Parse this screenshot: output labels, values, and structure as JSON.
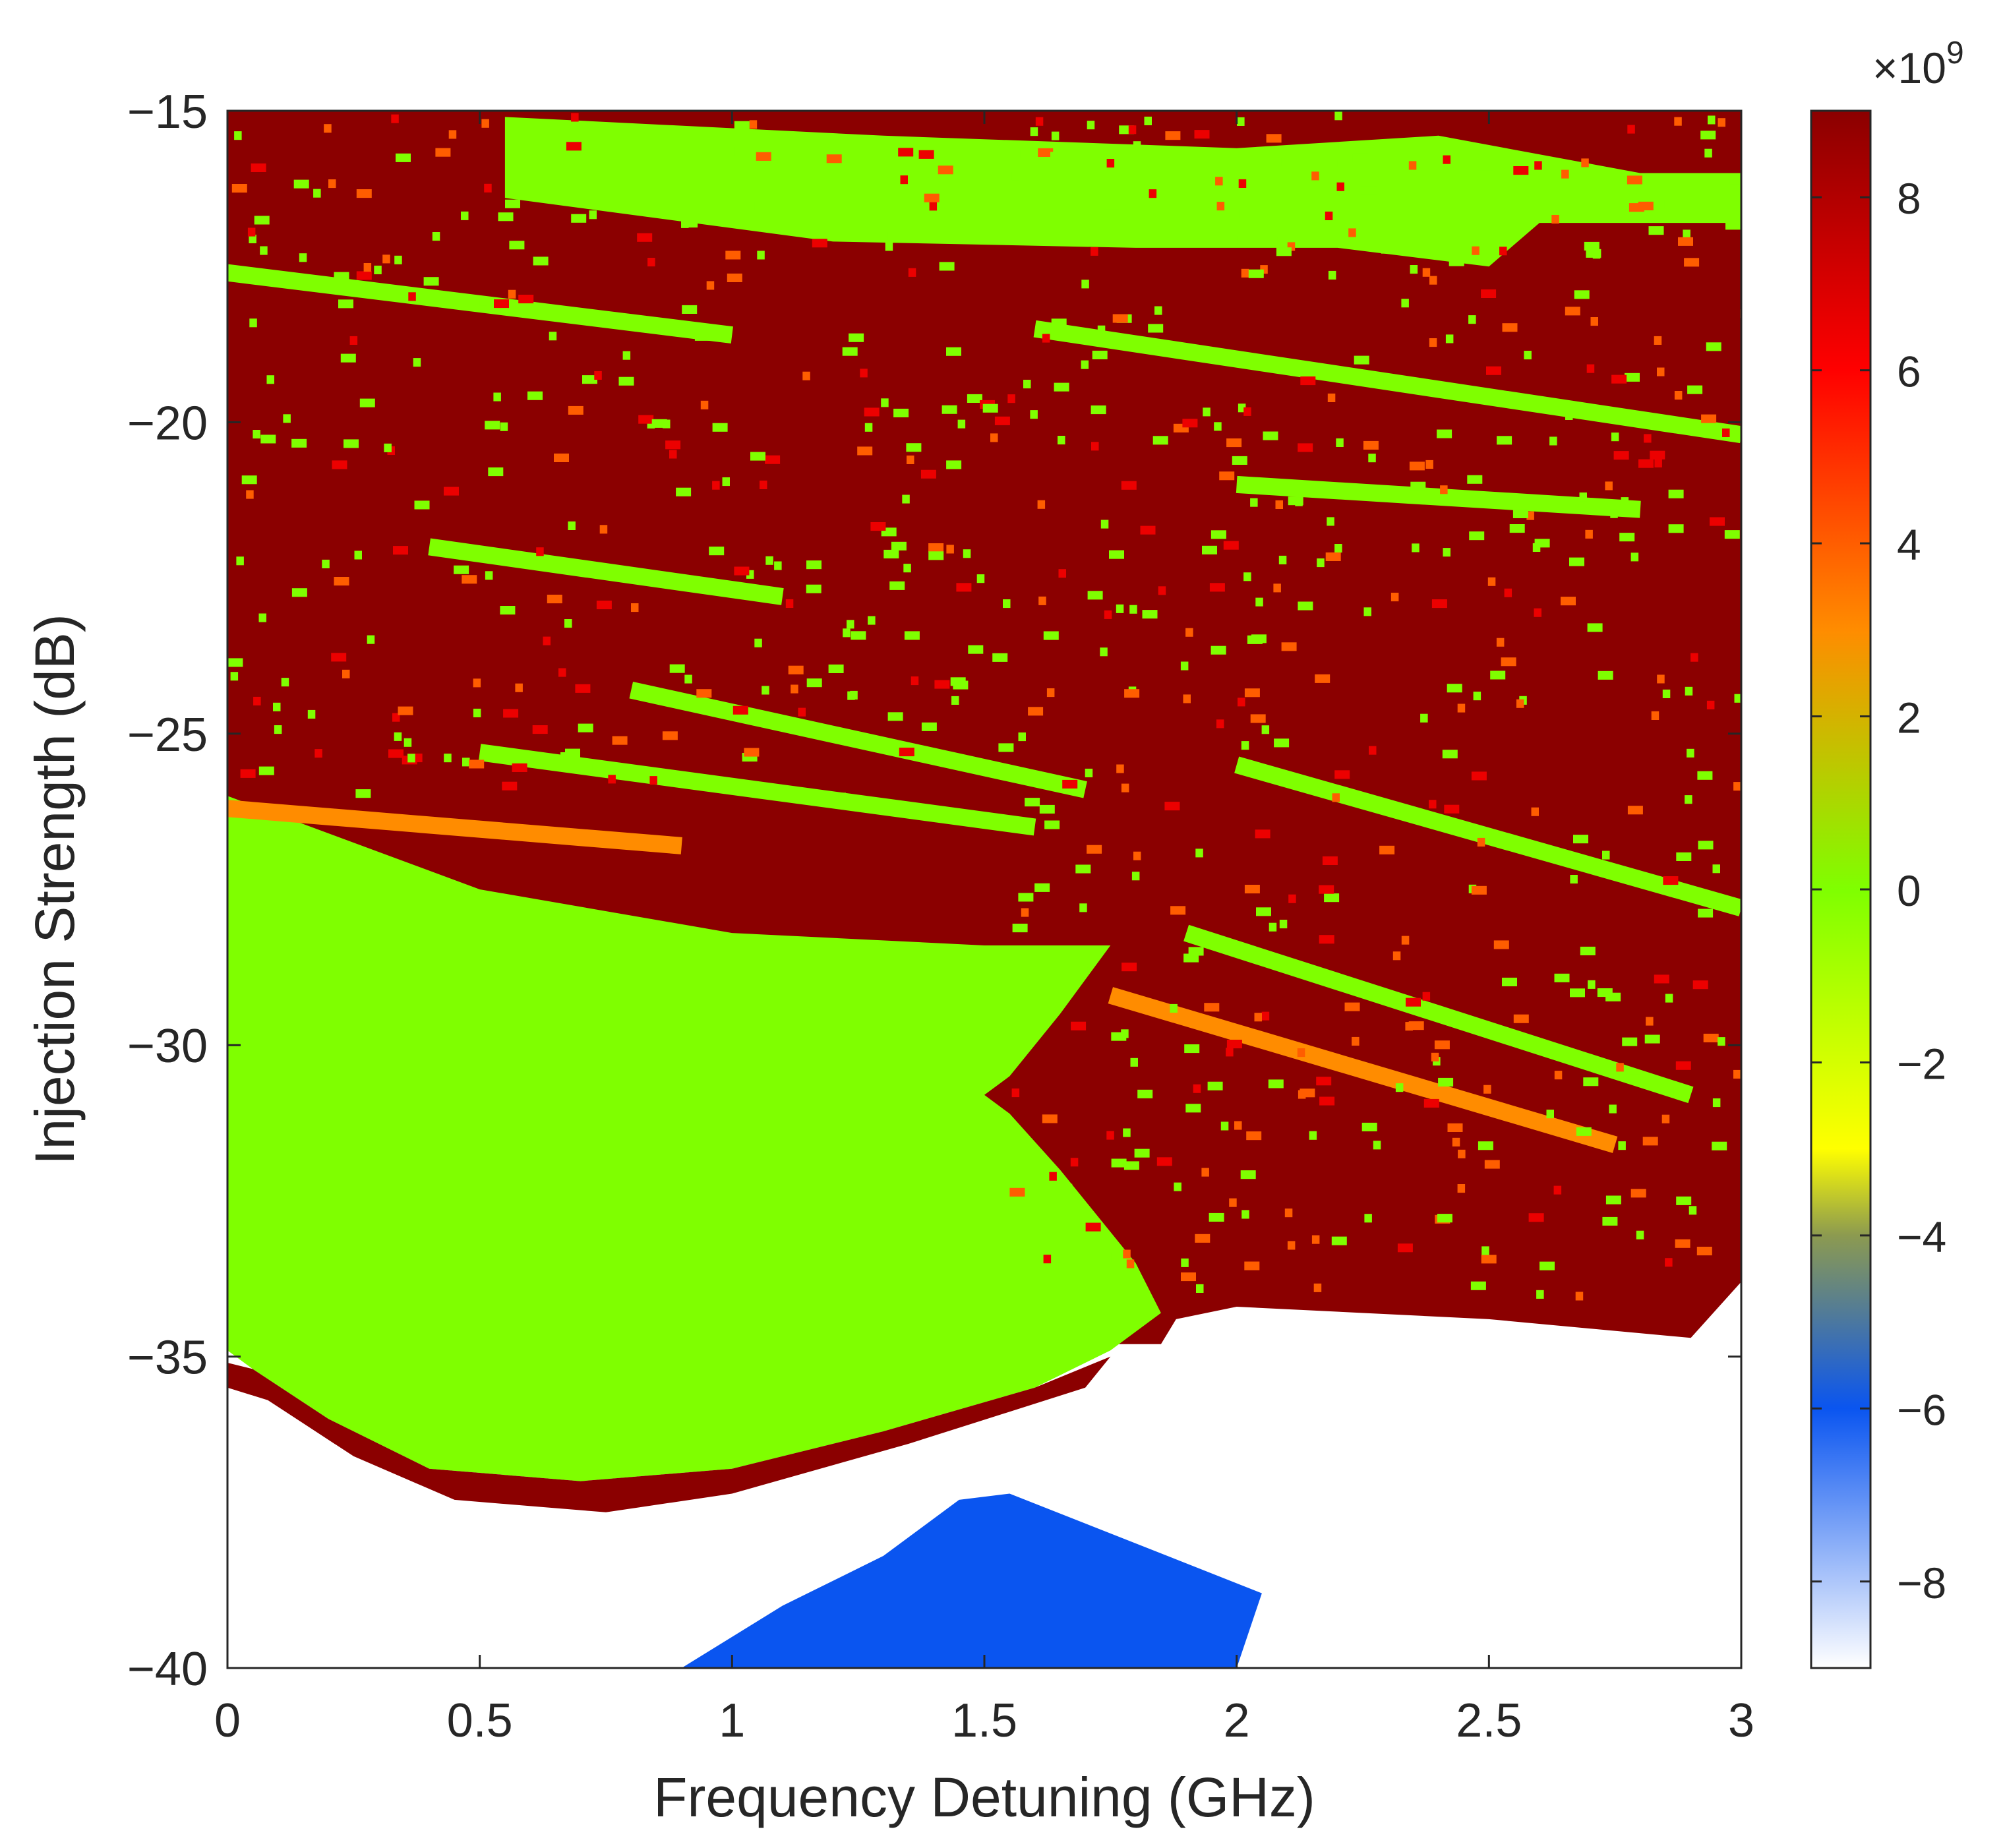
{
  "chart_data": {
    "type": "heatmap",
    "title": "",
    "xlabel": "Frequency Detuning (GHz)",
    "ylabel": "Injection Strength (dB)",
    "xlim": [
      0,
      3
    ],
    "ylim": [
      -40,
      -15
    ],
    "x_ticks": [
      0,
      0.5,
      1,
      1.5,
      2,
      2.5,
      3
    ],
    "x_tick_labels": [
      "0",
      "0.5",
      "1",
      "1.5",
      "2",
      "2.5",
      "3"
    ],
    "y_ticks": [
      -15,
      -20,
      -25,
      -30,
      -35,
      -40
    ],
    "y_tick_labels": [
      "−15",
      "−20",
      "−25",
      "−30",
      "−35",
      "−40"
    ],
    "grid": false,
    "colorbar": {
      "exponent_label": "×10",
      "exponent": "9",
      "limits": [
        -9,
        9
      ],
      "ticks": [
        8,
        6,
        4,
        2,
        0,
        -2,
        -4,
        -6,
        -8
      ],
      "tick_labels": [
        "8",
        "6",
        "4",
        "2",
        "0",
        "−2",
        "−4",
        "−6",
        "−8"
      ],
      "colormap": [
        {
          "v": -9,
          "color": "#ffffff"
        },
        {
          "v": -6,
          "color": "#0a55f0"
        },
        {
          "v": -4,
          "color": "#8c9a50"
        },
        {
          "v": -3,
          "color": "#ffff00"
        },
        {
          "v": 0,
          "color": "#7fff00"
        },
        {
          "v": 3,
          "color": "#ff8c00"
        },
        {
          "v": 6,
          "color": "#ff0000"
        },
        {
          "v": 9,
          "color": "#8b0000"
        }
      ]
    },
    "regions": [
      {
        "name": "high-value background",
        "value": 9,
        "outline": [
          [
            0,
            -15
          ],
          [
            3,
            -15
          ],
          [
            3,
            -33.8
          ],
          [
            2.9,
            -34.7
          ],
          [
            2.5,
            -34.4
          ],
          [
            2,
            -34.2
          ],
          [
            1.88,
            -34.4
          ],
          [
            1.85,
            -34.8
          ],
          [
            0,
            -34.8
          ]
        ]
      },
      {
        "name": "green wedge",
        "value": 0,
        "outline": [
          [
            0,
            -26
          ],
          [
            0.5,
            -27.5
          ],
          [
            1.0,
            -28.2
          ],
          [
            1.5,
            -28.4
          ],
          [
            1.75,
            -28.4
          ],
          [
            1.65,
            -29.5
          ],
          [
            1.55,
            -30.5
          ],
          [
            1.5,
            -30.8
          ],
          [
            1.55,
            -31.1
          ],
          [
            1.65,
            -32
          ],
          [
            1.8,
            -33.5
          ],
          [
            1.85,
            -34.3
          ],
          [
            1.75,
            -34.9
          ],
          [
            1.6,
            -35.5
          ],
          [
            1.3,
            -36.2
          ],
          [
            1.0,
            -36.8
          ],
          [
            0.7,
            -37
          ],
          [
            0.4,
            -36.8
          ],
          [
            0.2,
            -36
          ],
          [
            0.05,
            -35.2
          ],
          [
            0,
            -34.9
          ]
        ]
      },
      {
        "name": "upper green band",
        "value": 0,
        "outline": [
          [
            0.55,
            -15.1
          ],
          [
            1.3,
            -15.4
          ],
          [
            2.0,
            -15.6
          ],
          [
            2.4,
            -15.4
          ],
          [
            2.8,
            -16.0
          ],
          [
            3,
            -16.0
          ],
          [
            3,
            -16.8
          ],
          [
            2.6,
            -16.8
          ],
          [
            2.5,
            -17.5
          ],
          [
            2.2,
            -17.2
          ],
          [
            1.8,
            -17.2
          ],
          [
            1.2,
            -17.1
          ],
          [
            0.55,
            -16.4
          ]
        ]
      },
      {
        "name": "lower border band",
        "value": 9,
        "outline": [
          [
            0,
            -35.1
          ],
          [
            0.05,
            -35.2
          ],
          [
            0.2,
            -36
          ],
          [
            0.4,
            -36.8
          ],
          [
            0.7,
            -37
          ],
          [
            1.0,
            -36.8
          ],
          [
            1.3,
            -36.2
          ],
          [
            1.6,
            -35.5
          ],
          [
            1.75,
            -35.0
          ],
          [
            1.7,
            -35.5
          ],
          [
            1.35,
            -36.4
          ],
          [
            1.0,
            -37.2
          ],
          [
            0.75,
            -37.5
          ],
          [
            0.45,
            -37.3
          ],
          [
            0.25,
            -36.6
          ],
          [
            0.08,
            -35.7
          ],
          [
            0,
            -35.5
          ]
        ]
      },
      {
        "name": "negative lobe",
        "value": -6,
        "outline": [
          [
            0.9,
            -40
          ],
          [
            1.1,
            -39
          ],
          [
            1.3,
            -38.2
          ],
          [
            1.45,
            -37.3
          ],
          [
            1.55,
            -37.2
          ],
          [
            1.8,
            -38
          ],
          [
            2.05,
            -38.8
          ],
          [
            2.0,
            -40
          ]
        ]
      }
    ],
    "streaks": [
      {
        "x": [
          0.0,
          1.0
        ],
        "y": [
          -17.6,
          -18.6
        ],
        "value": 0
      },
      {
        "x": [
          0.8,
          1.7
        ],
        "y": [
          -24.3,
          -25.9
        ],
        "value": 0
      },
      {
        "x": [
          0.5,
          1.6
        ],
        "y": [
          -25.3,
          -26.5
        ],
        "value": 0
      },
      {
        "x": [
          1.6,
          3.0
        ],
        "y": [
          -18.5,
          -20.2
        ],
        "value": 0
      },
      {
        "x": [
          2.0,
          3.0
        ],
        "y": [
          -25.5,
          -27.8
        ],
        "value": 0
      },
      {
        "x": [
          1.9,
          2.9
        ],
        "y": [
          -28.2,
          -30.8
        ],
        "value": 0
      },
      {
        "x": [
          0.4,
          1.1
        ],
        "y": [
          -22.0,
          -22.8
        ],
        "value": 0
      },
      {
        "x": [
          2.0,
          2.8
        ],
        "y": [
          -21.0,
          -21.4
        ],
        "value": 0
      },
      {
        "x": [
          0.0,
          0.9
        ],
        "y": [
          -26.2,
          -26.8
        ],
        "value": 3
      },
      {
        "x": [
          1.75,
          2.75
        ],
        "y": [
          -29.2,
          -31.6
        ],
        "value": 3
      }
    ]
  }
}
